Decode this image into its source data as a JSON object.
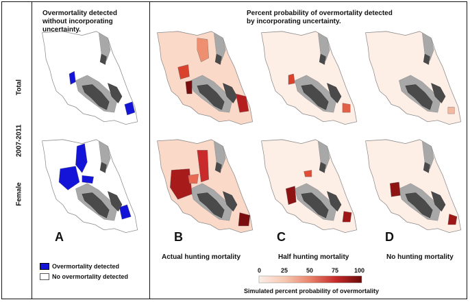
{
  "period_label": "2007-2011",
  "row_labels": [
    "Total",
    "Female"
  ],
  "panelA_title": "Overmortality detected without incorporating uncertainty.",
  "panelBCD_title": "Percent probability of overmortality detected by incorporating uncertainty.",
  "panel_letters": [
    "A",
    "B",
    "C",
    "D"
  ],
  "scenario_labels": [
    "Actual hunting mortality",
    "Half hunting mortality",
    "No hunting mortality"
  ],
  "legend_A": {
    "detected_label": "Overmortality detected",
    "detected_color": "#1414d8",
    "not_detected_label": "No overmortality detected",
    "not_detected_color": "#ffffff"
  },
  "colorbar": {
    "title": "Simulated percent probability of overmortality",
    "ticks": [
      "0",
      "25",
      "50",
      "75",
      "100"
    ],
    "min_color": "#fbeee8",
    "max_color": "#6b0a0a"
  },
  "excluded_colors": {
    "light": "#a8a8a8",
    "dark": "#4a4a4a"
  }
}
